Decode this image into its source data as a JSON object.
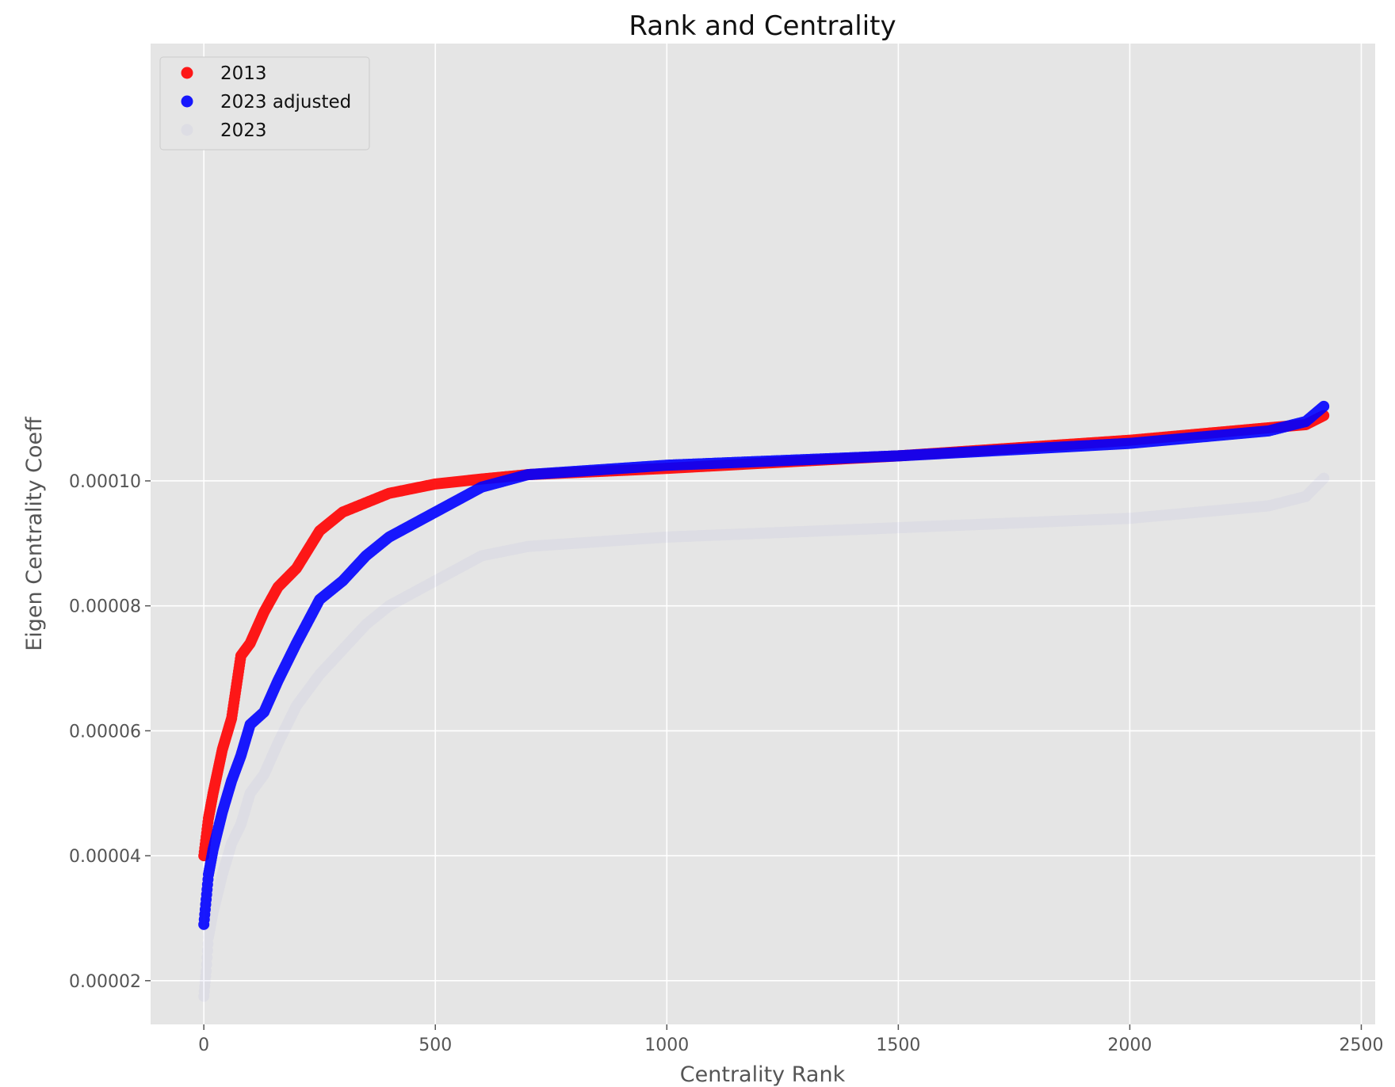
{
  "chart_data": {
    "type": "scatter",
    "title": "Rank and Centrality",
    "xlabel": "Centrality Rank",
    "ylabel": "Eigen Centrality Coeff",
    "xlim": [
      -115,
      2530
    ],
    "ylim": [
      1.3e-05,
      0.00017
    ],
    "xticks": [
      0,
      500,
      1000,
      1500,
      2000,
      2500
    ],
    "xtick_labels": [
      "0",
      "500",
      "1000",
      "1500",
      "2000",
      "2500"
    ],
    "yticks": [
      2e-05,
      4e-05,
      6e-05,
      8e-05,
      0.0001
    ],
    "ytick_labels": [
      "0.00002",
      "0.00004",
      "0.00006",
      "0.00008",
      "0.00010"
    ],
    "grid": true,
    "legend_position": "top-left",
    "background": "#e5e5e5",
    "n_points": 2420,
    "series": [
      {
        "name": "2013",
        "color": "#ff0000",
        "opacity": 0.9,
        "anchors_x": [
          0,
          10,
          20,
          40,
          60,
          80,
          100,
          130,
          160,
          200,
          250,
          300,
          350,
          400,
          500,
          600,
          700,
          1000,
          1500,
          2000,
          2300,
          2380,
          2420
        ],
        "anchors_y": [
          4e-05,
          4.6e-05,
          5e-05,
          5.7e-05,
          6.2e-05,
          7.2e-05,
          7.4e-05,
          7.9e-05,
          8.3e-05,
          8.6e-05,
          9.2e-05,
          9.5e-05,
          9.65e-05,
          9.8e-05,
          9.95e-05,
          0.0001003,
          0.000101,
          0.000102,
          0.000104,
          0.0001065,
          0.0001085,
          0.000109,
          0.0001105
        ]
      },
      {
        "name": "2023 adjusted",
        "color": "#0000ff",
        "opacity": 0.9,
        "anchors_x": [
          0,
          5,
          10,
          20,
          40,
          60,
          80,
          100,
          130,
          160,
          200,
          250,
          300,
          350,
          400,
          450,
          500,
          600,
          700,
          1000,
          1500,
          2000,
          2300,
          2380,
          2420
        ],
        "anchors_y": [
          2.9e-05,
          3.3e-05,
          3.7e-05,
          4.1e-05,
          4.7e-05,
          5.2e-05,
          5.6e-05,
          6.1e-05,
          6.3e-05,
          6.8e-05,
          7.4e-05,
          8.1e-05,
          8.4e-05,
          8.8e-05,
          9.1e-05,
          9.3e-05,
          9.5e-05,
          9.9e-05,
          0.000101,
          0.0001025,
          0.000104,
          0.000106,
          0.000108,
          0.0001095,
          0.000112
        ]
      },
      {
        "name": "2023",
        "color": "#7b7be8",
        "opacity": 0.07,
        "anchors_x": [
          0,
          5,
          10,
          20,
          40,
          60,
          80,
          100,
          130,
          160,
          200,
          250,
          300,
          350,
          400,
          450,
          500,
          600,
          700,
          1000,
          1500,
          2000,
          2300,
          2380,
          2420
        ],
        "anchors_y": [
          1.75e-05,
          2.15e-05,
          2.7e-05,
          3.1e-05,
          3.7e-05,
          4.2e-05,
          4.5e-05,
          5e-05,
          5.3e-05,
          5.8e-05,
          6.4e-05,
          6.9e-05,
          7.3e-05,
          7.7e-05,
          8e-05,
          8.2e-05,
          8.4e-05,
          8.8e-05,
          8.95e-05,
          9.1e-05,
          9.25e-05,
          9.4e-05,
          9.6e-05,
          9.75e-05,
          0.0001005
        ]
      }
    ]
  }
}
